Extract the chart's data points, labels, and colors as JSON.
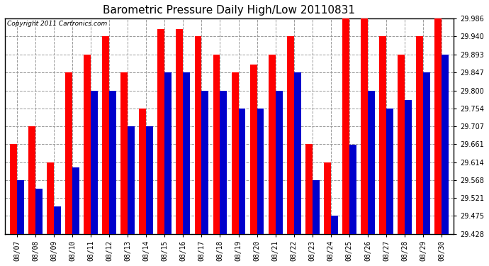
{
  "title": "Barometric Pressure Daily High/Low 20110831",
  "copyright": "Copyright 2011 Cartronics.com",
  "dates": [
    "08/07",
    "08/08",
    "08/09",
    "08/10",
    "08/11",
    "08/12",
    "08/13",
    "08/14",
    "08/15",
    "08/16",
    "08/17",
    "08/18",
    "08/19",
    "08/20",
    "08/21",
    "08/22",
    "08/23",
    "08/24",
    "08/25",
    "08/26",
    "08/27",
    "08/28",
    "08/29",
    "08/30"
  ],
  "highs": [
    29.661,
    29.707,
    29.614,
    29.847,
    29.893,
    29.94,
    29.847,
    29.754,
    29.96,
    29.96,
    29.94,
    29.893,
    29.847,
    29.868,
    29.893,
    29.94,
    29.661,
    29.614,
    29.986,
    29.986,
    29.94,
    29.893,
    29.94,
    29.986
  ],
  "lows": [
    29.568,
    29.546,
    29.5,
    29.6,
    29.8,
    29.8,
    29.707,
    29.707,
    29.847,
    29.847,
    29.8,
    29.8,
    29.754,
    29.754,
    29.8,
    29.847,
    29.568,
    29.475,
    29.66,
    29.8,
    29.754,
    29.775,
    29.847,
    29.893
  ],
  "high_color": "#ff0000",
  "low_color": "#0000cc",
  "bg_color": "#ffffff",
  "plot_bg_color": "#ffffff",
  "grid_color": "#999999",
  "ymin": 29.428,
  "ymax": 29.986,
  "yticks": [
    29.428,
    29.475,
    29.521,
    29.568,
    29.614,
    29.661,
    29.707,
    29.754,
    29.8,
    29.847,
    29.893,
    29.94,
    29.986
  ],
  "title_fontsize": 11,
  "copyright_fontsize": 6.5,
  "tick_fontsize": 7,
  "bar_width": 0.38
}
